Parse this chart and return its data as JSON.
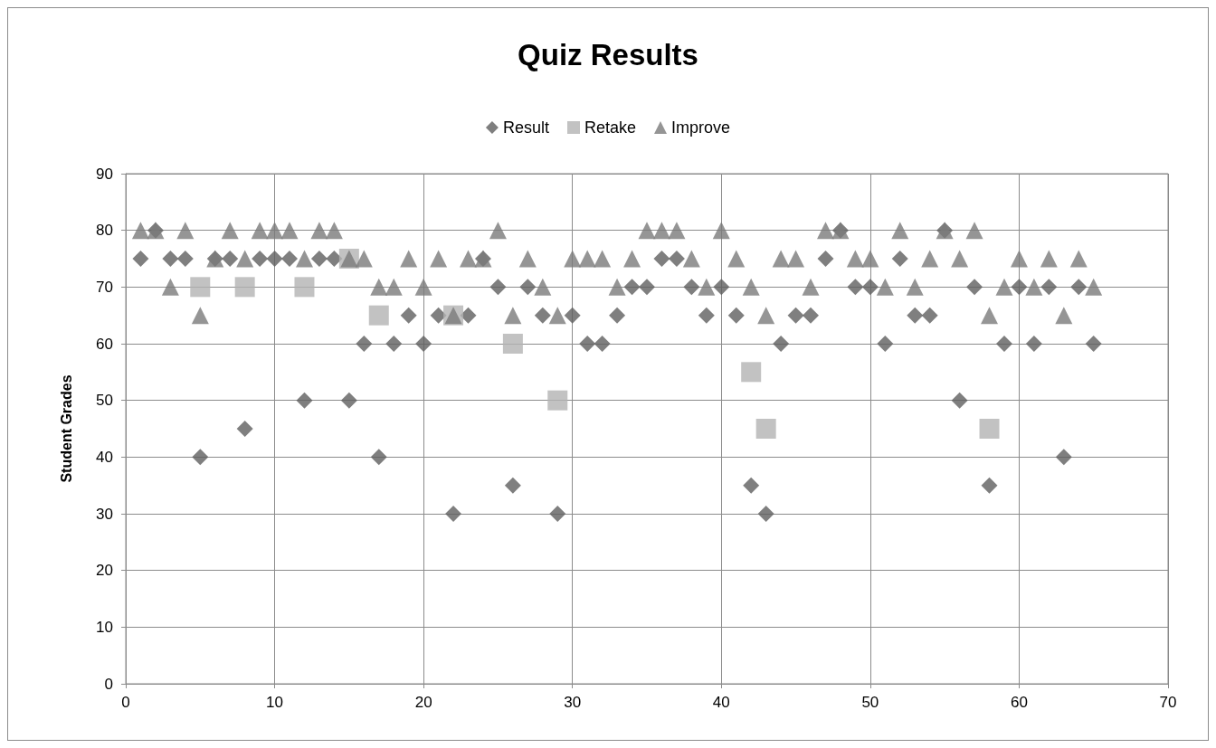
{
  "chart_data": {
    "type": "scatter",
    "title": "Quiz Results",
    "ylabel": "Student Grades",
    "x": [
      1,
      2,
      3,
      4,
      5,
      6,
      7,
      8,
      9,
      10,
      11,
      12,
      13,
      14,
      15,
      16,
      17,
      18,
      19,
      20,
      21,
      22,
      23,
      24,
      25,
      26,
      27,
      28,
      29,
      30,
      31,
      32,
      33,
      34,
      35,
      36,
      37,
      38,
      39,
      40,
      41,
      42,
      43,
      44,
      45,
      46,
      47,
      48,
      49,
      50,
      51,
      52,
      53,
      54,
      55,
      56,
      57,
      58,
      59,
      60,
      61,
      62,
      63,
      64,
      65
    ],
    "series": [
      {
        "name": "Result",
        "color": "#5f5f5f",
        "marker": "diamond",
        "values": [
          75,
          80,
          75,
          75,
          40,
          75,
          75,
          45,
          75,
          75,
          75,
          50,
          75,
          75,
          50,
          60,
          40,
          60,
          65,
          60,
          65,
          30,
          65,
          75,
          70,
          35,
          70,
          65,
          30,
          65,
          60,
          60,
          65,
          70,
          70,
          75,
          75,
          70,
          65,
          70,
          65,
          35,
          30,
          60,
          65,
          65,
          75,
          80,
          70,
          70,
          60,
          75,
          65,
          65,
          80,
          50,
          70,
          35,
          60,
          70,
          60,
          70,
          40,
          70,
          60
        ]
      },
      {
        "name": "Retake",
        "color": "#b3b3b3",
        "marker": "square",
        "values": [
          null,
          null,
          null,
          null,
          70,
          null,
          null,
          70,
          null,
          null,
          null,
          70,
          null,
          null,
          75,
          null,
          65,
          null,
          null,
          null,
          null,
          65,
          null,
          null,
          null,
          60,
          null,
          null,
          50,
          null,
          null,
          null,
          null,
          null,
          null,
          null,
          null,
          null,
          null,
          null,
          null,
          55,
          45,
          null,
          null,
          null,
          null,
          null,
          null,
          null,
          null,
          null,
          null,
          null,
          null,
          null,
          null,
          45,
          null,
          null,
          null,
          null,
          null,
          null,
          null
        ]
      },
      {
        "name": "Improve",
        "color": "#7a7a7a",
        "marker": "triangle",
        "values": [
          80,
          80,
          70,
          80,
          65,
          75,
          80,
          75,
          80,
          80,
          80,
          75,
          80,
          80,
          75,
          75,
          70,
          70,
          75,
          70,
          75,
          65,
          75,
          75,
          80,
          65,
          75,
          70,
          65,
          75,
          75,
          75,
          70,
          75,
          80,
          80,
          80,
          75,
          70,
          80,
          75,
          70,
          65,
          75,
          75,
          70,
          80,
          80,
          75,
          75,
          70,
          80,
          70,
          75,
          80,
          75,
          80,
          65,
          70,
          75,
          70,
          75,
          65,
          75,
          70
        ]
      }
    ],
    "xlim": [
      0,
      70
    ],
    "xticks": [
      0,
      10,
      20,
      30,
      40,
      50,
      60,
      70
    ],
    "ylim": [
      0,
      90
    ],
    "yticks": [
      0,
      10,
      20,
      30,
      40,
      50,
      60,
      70,
      80,
      90
    ],
    "grid": true,
    "legend": "top"
  }
}
